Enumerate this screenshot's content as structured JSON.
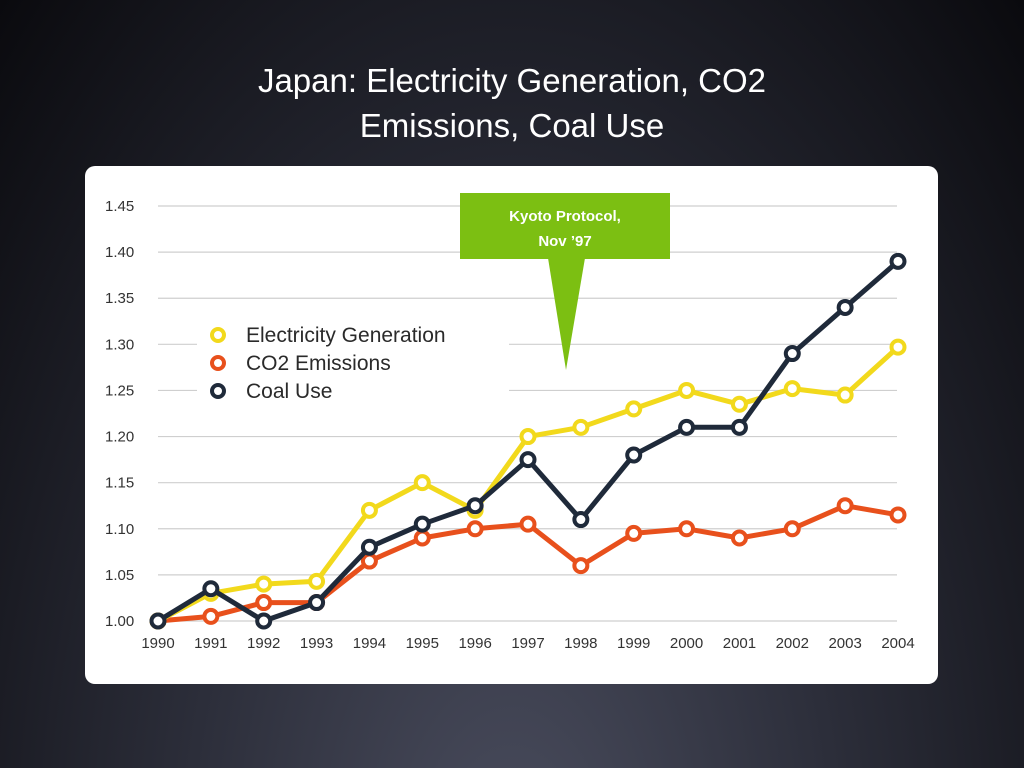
{
  "slide": {
    "title_line1": "Japan: Electricity Generation, CO2",
    "title_line2": "Emissions, Coal Use"
  },
  "chart_data": {
    "type": "line",
    "x": [
      "1990",
      "1991",
      "1992",
      "1993",
      "1994",
      "1995",
      "1996",
      "1997",
      "1998",
      "1999",
      "2000",
      "2001",
      "2002",
      "2003",
      "2004"
    ],
    "yticks": [
      "1.00",
      "1.05",
      "1.10",
      "1.15",
      "1.20",
      "1.25",
      "1.30",
      "1.35",
      "1.40",
      "1.45"
    ],
    "ylim": [
      1.0,
      1.45
    ],
    "grid": true,
    "legend_position": "upper-left",
    "series": [
      {
        "name": "Electricity Generation",
        "color": "#f2d91c",
        "values": [
          1.0,
          1.03,
          1.04,
          1.043,
          1.12,
          1.15,
          1.12,
          1.2,
          1.21,
          1.23,
          1.25,
          1.235,
          1.252,
          1.245,
          1.297
        ]
      },
      {
        "name": "CO2 Emissions",
        "color": "#e8501c",
        "values": [
          1.0,
          1.005,
          1.02,
          1.02,
          1.065,
          1.09,
          1.1,
          1.105,
          1.06,
          1.095,
          1.1,
          1.09,
          1.1,
          1.125,
          1.115
        ]
      },
      {
        "name": "Coal Use",
        "color": "#1f2a3a",
        "values": [
          1.0,
          1.035,
          1.0,
          1.02,
          1.08,
          1.105,
          1.125,
          1.175,
          1.11,
          1.18,
          1.21,
          1.21,
          1.29,
          1.34,
          1.39
        ]
      }
    ],
    "annotation": {
      "line1": "Kyoto Protocol,",
      "line2": "Nov ’97",
      "color": "#7cbf12"
    }
  }
}
